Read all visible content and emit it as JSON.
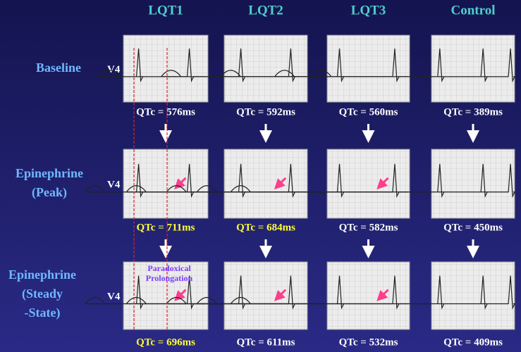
{
  "columns": [
    "LQT1",
    "LQT2",
    "LQT3",
    "Control"
  ],
  "rows": [
    {
      "label": [
        "Baseline"
      ],
      "lead": "V4",
      "qtc": [
        {
          "text": "QTc = 576ms",
          "color": "#ffffff"
        },
        {
          "text": "QTc = 592ms",
          "color": "#ffffff"
        },
        {
          "text": "QTc = 560ms",
          "color": "#ffffff"
        },
        {
          "text": "QTc = 389ms",
          "color": "#ffffff"
        }
      ]
    },
    {
      "label": [
        "Epinephrine",
        "(Peak)"
      ],
      "lead": "V4",
      "qtc": [
        {
          "text": "QTc = 711ms",
          "color": "#ffff33"
        },
        {
          "text": "QTc = 684ms",
          "color": "#ffff33"
        },
        {
          "text": "QTc = 582ms",
          "color": "#ffffff"
        },
        {
          "text": "QTc = 450ms",
          "color": "#ffffff"
        }
      ]
    },
    {
      "label": [
        "Epinephrine",
        "(Steady",
        "-State)"
      ],
      "lead": "V4",
      "qtc": [
        {
          "text": "QTc = 696ms",
          "color": "#ffff33"
        },
        {
          "text": "QTc = 611ms",
          "color": "#ffffff"
        },
        {
          "text": "QTc = 532ms",
          "color": "#ffffff"
        },
        {
          "text": "QTc = 409ms",
          "color": "#ffffff"
        }
      ]
    }
  ],
  "annotation": [
    "Paradoxical",
    "Prolongation"
  ]
}
